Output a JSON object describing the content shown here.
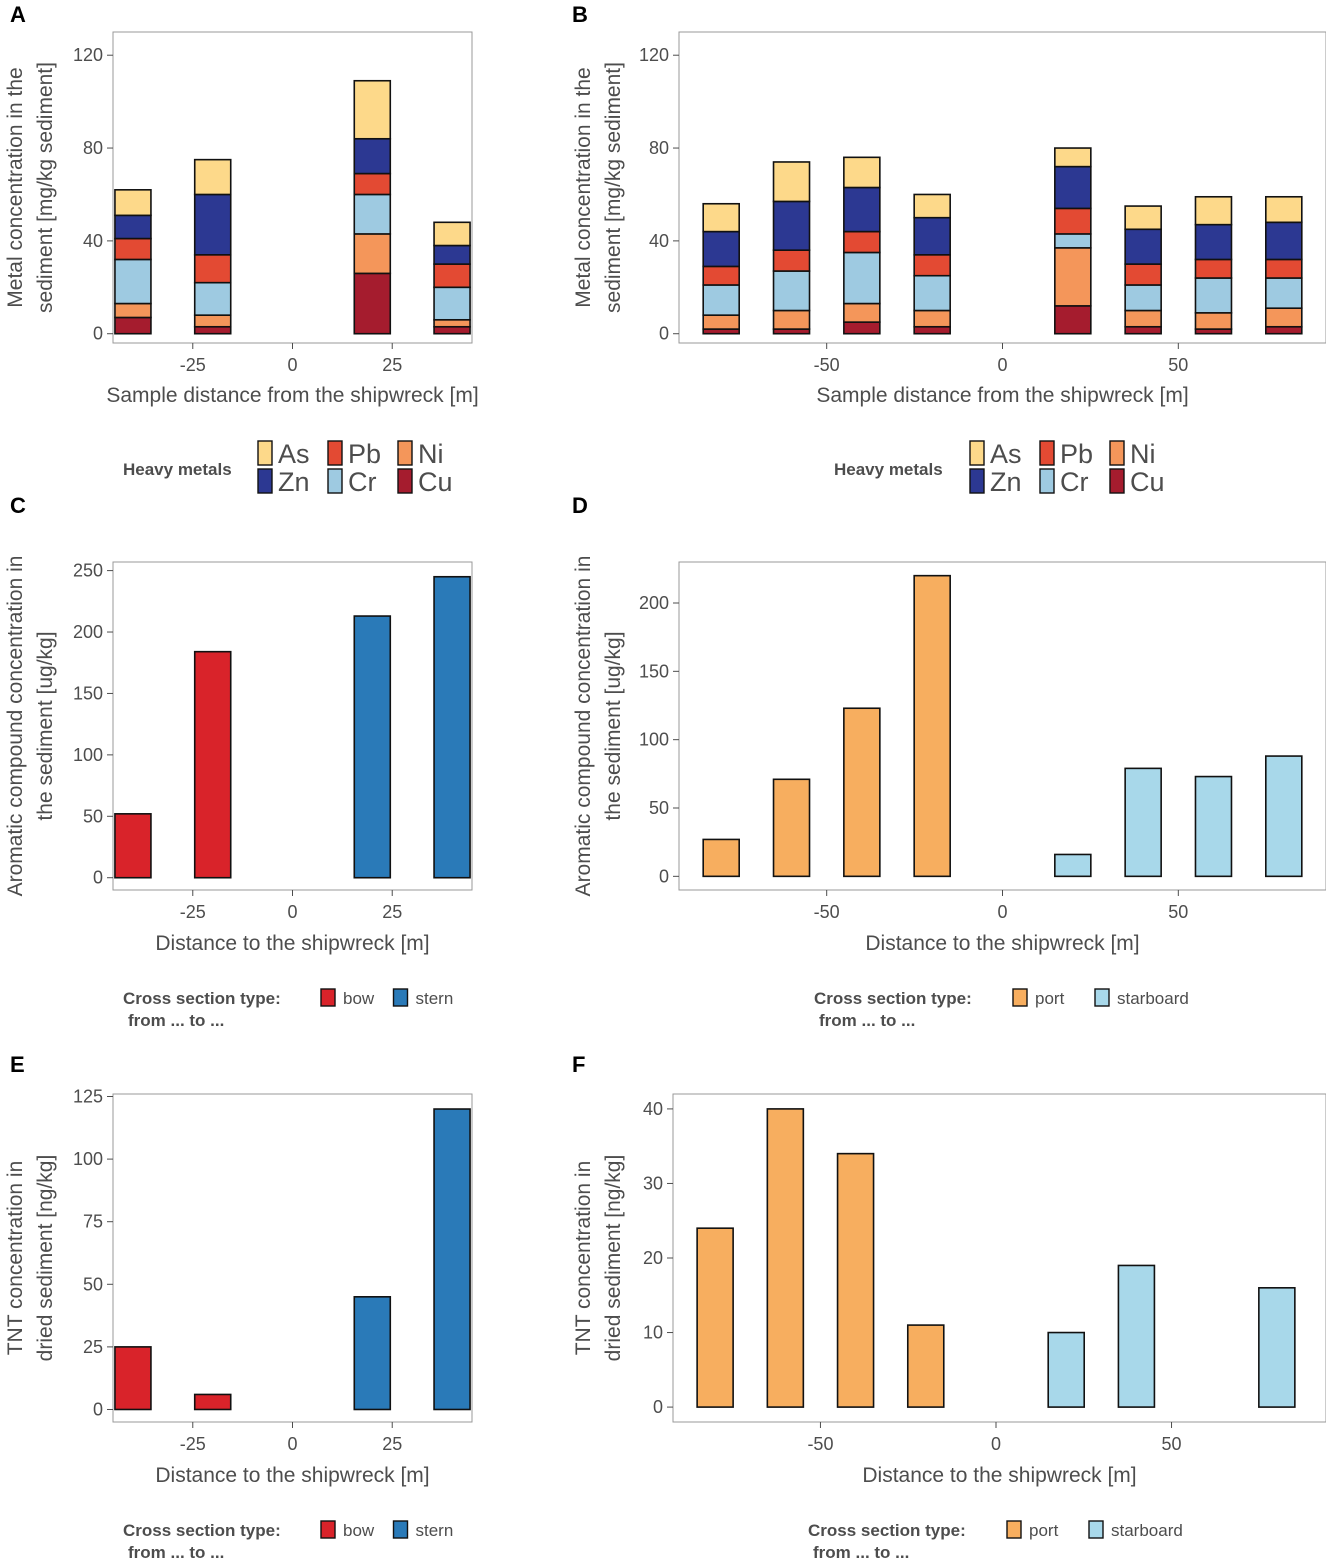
{
  "chart_data": [
    {
      "panel": "A",
      "type": "bar",
      "stacked": true,
      "xlabel": "Sample distance from the shipwreck [m]",
      "ylabel": [
        "Metal concentration in the",
        "sediment [mg/kg sediment]"
      ],
      "xlim": [
        -45,
        45
      ],
      "ylim": [
        -4,
        130
      ],
      "xticks": [
        -25,
        0,
        25
      ],
      "yticks": [
        0,
        40,
        80,
        120
      ],
      "x": [
        -40,
        -20,
        20,
        40
      ],
      "stack_order": [
        "Cu",
        "Ni",
        "Cr",
        "Pb",
        "Zn",
        "As"
      ],
      "series": [
        {
          "name": "Cu",
          "values": [
            7,
            3,
            26,
            3
          ]
        },
        {
          "name": "Ni",
          "values": [
            6,
            5,
            17,
            3
          ]
        },
        {
          "name": "Cr",
          "values": [
            19,
            14,
            17,
            14
          ]
        },
        {
          "name": "Pb",
          "values": [
            9,
            12,
            9,
            10
          ]
        },
        {
          "name": "Zn",
          "values": [
            10,
            26,
            15,
            8
          ]
        },
        {
          "name": "As",
          "values": [
            11,
            15,
            25,
            10
          ]
        }
      ],
      "legend": {
        "title": "Heavy metals",
        "entries": [
          "As",
          "Pb",
          "Ni",
          "Zn",
          "Cr",
          "Cu"
        ]
      }
    },
    {
      "panel": "B",
      "type": "bar",
      "stacked": true,
      "xlabel": "Sample distance from the shipwreck [m]",
      "ylabel": [
        "Metal concentration in the",
        "sediment [mg/kg sediment]"
      ],
      "xlim": [
        -92,
        92
      ],
      "ylim": [
        -4,
        130
      ],
      "xticks": [
        -50,
        0,
        50
      ],
      "yticks": [
        0,
        40,
        80,
        120
      ],
      "x": [
        -80,
        -60,
        -40,
        -20,
        20,
        40,
        60,
        80
      ],
      "stack_order": [
        "Cu",
        "Ni",
        "Cr",
        "Pb",
        "Zn",
        "As"
      ],
      "series": [
        {
          "name": "Cu",
          "values": [
            2,
            2,
            5,
            3,
            12,
            3,
            2,
            3
          ]
        },
        {
          "name": "Ni",
          "values": [
            6,
            8,
            8,
            7,
            25,
            7,
            7,
            8
          ]
        },
        {
          "name": "Cr",
          "values": [
            13,
            17,
            22,
            15,
            6,
            11,
            15,
            13
          ]
        },
        {
          "name": "Pb",
          "values": [
            8,
            9,
            9,
            9,
            11,
            9,
            8,
            8
          ]
        },
        {
          "name": "Zn",
          "values": [
            15,
            21,
            19,
            16,
            18,
            15,
            15,
            16
          ]
        },
        {
          "name": "As",
          "values": [
            12,
            17,
            13,
            10,
            8,
            10,
            12,
            11
          ]
        }
      ],
      "legend": {
        "title": "Heavy metals",
        "entries": [
          "As",
          "Pb",
          "Ni",
          "Zn",
          "Cr",
          "Cu"
        ]
      }
    },
    {
      "panel": "C",
      "type": "bar",
      "xlabel": "Distance to the shipwreck [m]",
      "ylabel": [
        "Aromatic compound concentration in",
        "the sediment [ug/kg]"
      ],
      "xlim": [
        -45,
        45
      ],
      "ylim": [
        -10,
        257
      ],
      "xticks": [
        -25,
        0,
        25
      ],
      "yticks": [
        0,
        50,
        100,
        150,
        200,
        250
      ],
      "x": [
        -40,
        -20,
        20,
        40
      ],
      "values": [
        52,
        184,
        213,
        245
      ],
      "groups": [
        "bow",
        "bow",
        "stern",
        "stern"
      ],
      "legend": {
        "title": [
          "Cross section type:",
          "from ... to ..."
        ],
        "entries": [
          "bow",
          "stern"
        ]
      }
    },
    {
      "panel": "D",
      "type": "bar",
      "xlabel": "Distance to the shipwreck [m]",
      "ylabel": [
        "Aromatic compound concentration in",
        "the sediment [ug/kg]"
      ],
      "xlim": [
        -92,
        92
      ],
      "ylim": [
        -10,
        230
      ],
      "xticks": [
        -50,
        0,
        50
      ],
      "yticks": [
        0,
        50,
        100,
        150,
        200
      ],
      "x": [
        -80,
        -60,
        -40,
        -20,
        20,
        40,
        60,
        80
      ],
      "values": [
        27,
        71,
        123,
        220,
        16,
        79,
        73,
        88
      ],
      "groups": [
        "port",
        "port",
        "port",
        "port",
        "starboard",
        "starboard",
        "starboard",
        "starboard"
      ],
      "legend": {
        "title": [
          "Cross section type:",
          "from ... to ..."
        ],
        "entries": [
          "port",
          "starboard"
        ]
      }
    },
    {
      "panel": "E",
      "type": "bar",
      "xlabel": "Distance to the shipwreck [m]",
      "ylabel": [
        "TNT concentration in",
        "dried sediment [ng/kg]"
      ],
      "xlim": [
        -45,
        45
      ],
      "ylim": [
        -5,
        126
      ],
      "xticks": [
        -25,
        0,
        25
      ],
      "yticks": [
        0,
        25,
        50,
        75,
        100,
        125
      ],
      "x": [
        -40,
        -20,
        20,
        40
      ],
      "values": [
        25,
        6,
        45,
        120
      ],
      "groups": [
        "bow",
        "bow",
        "stern",
        "stern"
      ],
      "legend": {
        "title": [
          "Cross section type:",
          "from ... to ..."
        ],
        "entries": [
          "bow",
          "stern"
        ]
      }
    },
    {
      "panel": "F",
      "type": "bar",
      "xlabel": "Distance to the shipwreck [m]",
      "ylabel": [
        "TNT concentration in",
        "dried sediment [ng/kg]"
      ],
      "xlim": [
        -92,
        94
      ],
      "ylim": [
        -2,
        42
      ],
      "xticks": [
        -50,
        0,
        50
      ],
      "yticks": [
        0,
        10,
        20,
        30,
        40
      ],
      "x": [
        -80,
        -60,
        -40,
        -20,
        20,
        40,
        60,
        80
      ],
      "values": [
        24,
        40,
        34,
        11,
        10,
        19,
        0,
        16
      ],
      "groups": [
        "port",
        "port",
        "port",
        "port",
        "starboard",
        "starboard",
        "starboard",
        "starboard"
      ],
      "legend": {
        "title": [
          "Cross section type:",
          "from ... to ..."
        ],
        "entries": [
          "port",
          "starboard"
        ]
      }
    }
  ],
  "colors": {
    "As": "#FDD98A",
    "Zn": "#2C3892",
    "Pb": "#E34A33",
    "Cr": "#9ECAE1",
    "Ni": "#F4965A",
    "Cu": "#A51C2E",
    "bow": "#D9232A",
    "stern": "#2A7AB8",
    "port": "#F7AE5F",
    "starboard": "#A8D8EA"
  }
}
